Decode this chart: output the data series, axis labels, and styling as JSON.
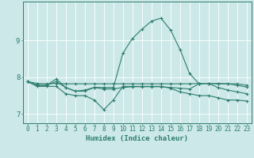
{
  "xlabel": "Humidex (Indice chaleur)",
  "bg_color": "#cce8e8",
  "grid_color": "#ffffff",
  "line_color": "#2e7d6e",
  "xlim": [
    -0.5,
    23.5
  ],
  "ylim": [
    6.75,
    10.05
  ],
  "yticks": [
    7,
    8,
    9
  ],
  "xticks": [
    0,
    1,
    2,
    3,
    4,
    5,
    6,
    7,
    8,
    9,
    10,
    11,
    12,
    13,
    14,
    15,
    16,
    17,
    18,
    19,
    20,
    21,
    22,
    23
  ],
  "series": [
    {
      "x": [
        0,
        1,
        2,
        3,
        4,
        5,
        6,
        7,
        8,
        9,
        10,
        11,
        12,
        13,
        14,
        15,
        16,
        17,
        18,
        19,
        20,
        21,
        22,
        23
      ],
      "y": [
        7.88,
        7.83,
        7.82,
        7.83,
        7.82,
        7.82,
        7.82,
        7.82,
        7.82,
        7.82,
        7.82,
        7.82,
        7.82,
        7.82,
        7.82,
        7.82,
        7.82,
        7.82,
        7.83,
        7.83,
        7.83,
        7.82,
        7.82,
        7.78
      ]
    },
    {
      "x": [
        0,
        1,
        2,
        3,
        4,
        5,
        6,
        7,
        8,
        9,
        10,
        11,
        12,
        13,
        14,
        15,
        16,
        17,
        18,
        19,
        20,
        21,
        22,
        23
      ],
      "y": [
        7.88,
        7.78,
        7.78,
        7.95,
        7.72,
        7.62,
        7.62,
        7.72,
        7.72,
        7.72,
        8.65,
        9.05,
        9.3,
        9.52,
        9.6,
        9.28,
        8.75,
        8.1,
        7.82,
        7.83,
        7.82,
        7.82,
        7.78,
        7.73
      ]
    },
    {
      "x": [
        0,
        1,
        2,
        3,
        4,
        5,
        6,
        7,
        8,
        9,
        10,
        11,
        12,
        13,
        14,
        15,
        16,
        17,
        18,
        19,
        20,
        21,
        22,
        23
      ],
      "y": [
        7.88,
        7.75,
        7.75,
        7.75,
        7.55,
        7.5,
        7.5,
        7.38,
        7.12,
        7.38,
        7.75,
        7.75,
        7.75,
        7.75,
        7.75,
        7.7,
        7.6,
        7.55,
        7.5,
        7.5,
        7.44,
        7.38,
        7.38,
        7.35
      ]
    },
    {
      "x": [
        0,
        1,
        2,
        3,
        4,
        5,
        6,
        7,
        8,
        9,
        10,
        11,
        12,
        13,
        14,
        15,
        16,
        17,
        18,
        19,
        20,
        21,
        22,
        23
      ],
      "y": [
        7.88,
        7.78,
        7.78,
        7.88,
        7.72,
        7.62,
        7.65,
        7.72,
        7.68,
        7.68,
        7.72,
        7.74,
        7.74,
        7.74,
        7.74,
        7.72,
        7.7,
        7.68,
        7.82,
        7.83,
        7.72,
        7.65,
        7.6,
        7.55
      ]
    }
  ]
}
